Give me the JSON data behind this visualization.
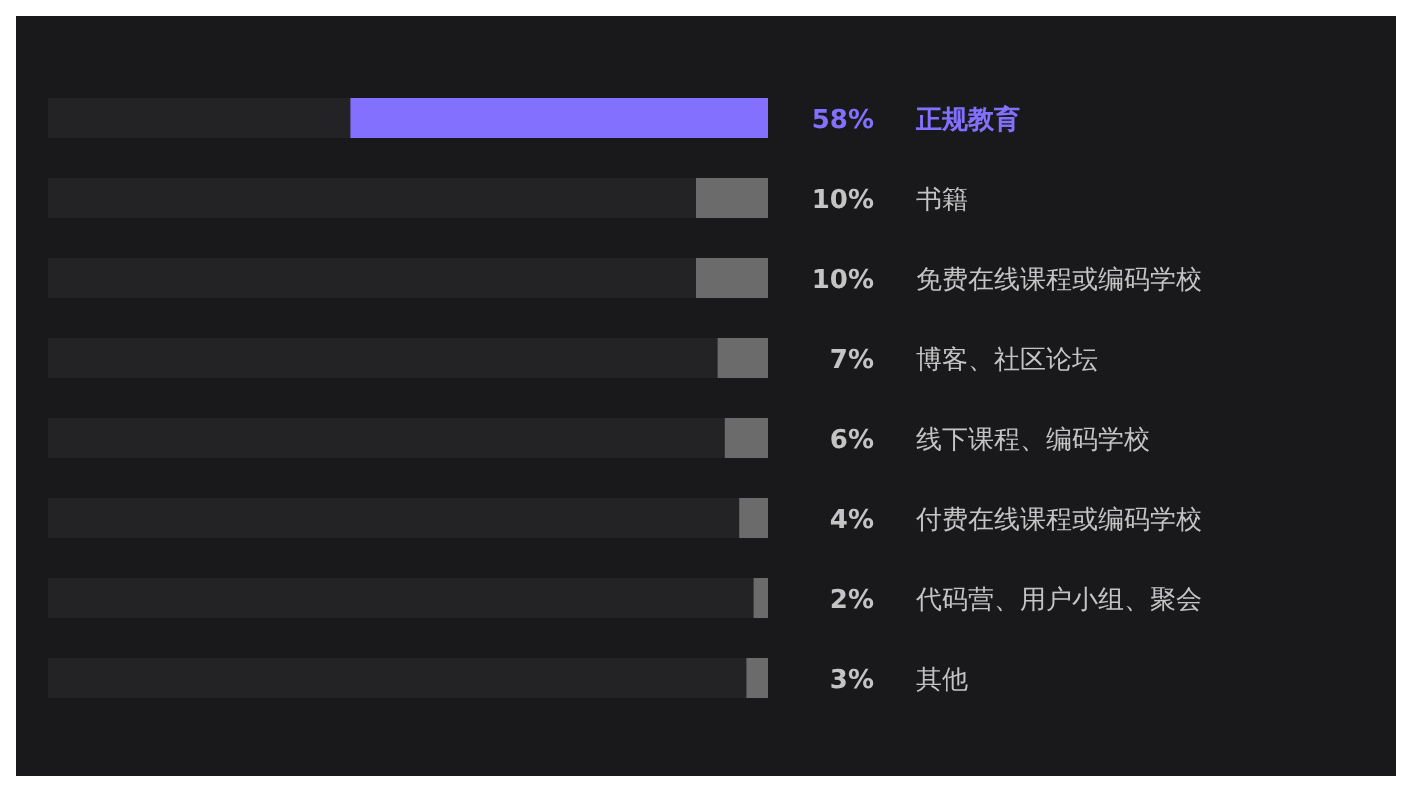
{
  "chart_data": {
    "type": "bar",
    "orientation": "horizontal",
    "categories": [
      "正规教育",
      "书籍",
      "免费在线课程或编码学校",
      "博客、社区论坛",
      "线下课程、编码学校",
      "付费在线课程或编码学校",
      "代码营、用户小组、聚会",
      "其他"
    ],
    "values": [
      58,
      10,
      10,
      7,
      6,
      4,
      2,
      3
    ],
    "colors": [
      "#8470ff",
      "#6b6b6b",
      "#6b6b6b",
      "#6b6b6b",
      "#6b6b6b",
      "#6b6b6b",
      "#6b6b6b",
      "#6b6b6b"
    ],
    "xlim": [
      100,
      0
    ],
    "value_labels": [
      "58%",
      "10%",
      "10%",
      "7%",
      "6%",
      "4%",
      "2%",
      "3%"
    ]
  }
}
